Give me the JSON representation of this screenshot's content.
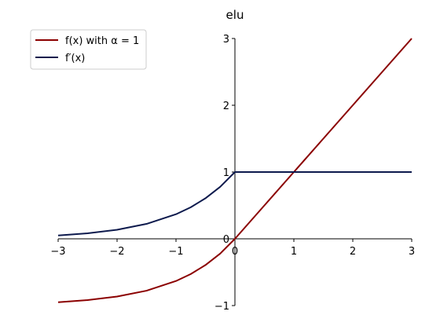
{
  "chart_data": {
    "type": "line",
    "title": "elu",
    "xlabel": "",
    "ylabel": "",
    "xlim": [
      -3,
      3
    ],
    "ylim": [
      -1,
      3
    ],
    "x_ticks": [
      "−3",
      "−2",
      "−1",
      "0",
      "1",
      "2",
      "3"
    ],
    "y_ticks": [
      "−1",
      "0",
      "1",
      "2",
      "3"
    ],
    "grid": false,
    "legend_position": "top-left",
    "x": [
      -3,
      -2.5,
      -2,
      -1.5,
      -1,
      -0.75,
      -0.5,
      -0.25,
      0,
      0.5,
      1,
      1.5,
      2,
      2.5,
      3
    ],
    "series": [
      {
        "name": "f(x) with α = 1",
        "color": "#8b0000",
        "values": [
          -0.95,
          -0.918,
          -0.865,
          -0.777,
          -0.632,
          -0.528,
          -0.393,
          -0.221,
          0,
          0.5,
          1,
          1.5,
          2,
          2.5,
          3
        ]
      },
      {
        "name": "f′(x)",
        "color": "#0d1a4d",
        "values": [
          0.05,
          0.082,
          0.135,
          0.223,
          0.368,
          0.472,
          0.607,
          0.779,
          1,
          1,
          1,
          1,
          1,
          1,
          1
        ]
      }
    ]
  }
}
